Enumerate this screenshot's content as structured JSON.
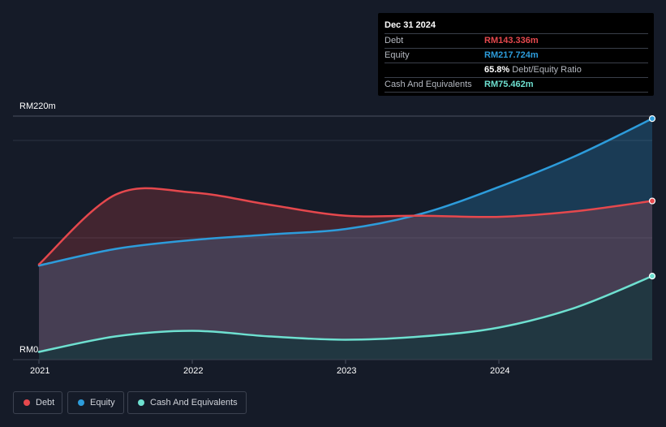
{
  "tooltip": {
    "date": "Dec 31 2024",
    "rows": [
      {
        "label": "Debt",
        "value": "RM143.336m",
        "color": "#e5484d"
      },
      {
        "label": "Equity",
        "value": "RM217.724m",
        "color": "#2d9cdb"
      },
      {
        "ratio_value": "65.8%",
        "ratio_label": "Debt/Equity Ratio"
      },
      {
        "label": "Cash And Equivalents",
        "value": "RM75.462m",
        "color": "#6ee0d0"
      }
    ]
  },
  "legend": [
    {
      "label": "Debt",
      "color": "#e5484d"
    },
    {
      "label": "Equity",
      "color": "#2d9cdb"
    },
    {
      "label": "Cash And Equivalents",
      "color": "#6ee0d0"
    }
  ],
  "chart_data": {
    "type": "area",
    "title": "",
    "ylim": [
      0,
      220
    ],
    "y_tick_labels": [
      "RM220m",
      "RM0"
    ],
    "y_unit": "RM m",
    "x_range": [
      2021,
      2025
    ],
    "x_tick_labels": [
      "2021",
      "2022",
      "2023",
      "2024"
    ],
    "x_ticks": [
      2021,
      2022,
      2023,
      2024
    ],
    "series": [
      {
        "name": "Debt",
        "color": "#e5484d",
        "x": [
          2021,
          2021.5,
          2022,
          2022.5,
          2023,
          2023.5,
          2024,
          2024.5,
          2025
        ],
        "values": [
          86,
          149,
          151,
          140,
          130,
          130,
          129,
          134,
          143.336
        ]
      },
      {
        "name": "Equity",
        "color": "#2d9cdb",
        "x": [
          2021,
          2021.5,
          2022,
          2022.5,
          2023,
          2023.5,
          2024,
          2024.5,
          2025
        ],
        "values": [
          85,
          100,
          108,
          113,
          118,
          132,
          156,
          184,
          217.724
        ]
      },
      {
        "name": "Cash And Equivalents",
        "color": "#6ee0d0",
        "x": [
          2021,
          2021.5,
          2022,
          2022.5,
          2023,
          2023.5,
          2024,
          2024.5,
          2025
        ],
        "values": [
          7,
          21,
          26,
          21,
          18,
          21,
          29,
          47,
          75.462
        ]
      }
    ]
  }
}
